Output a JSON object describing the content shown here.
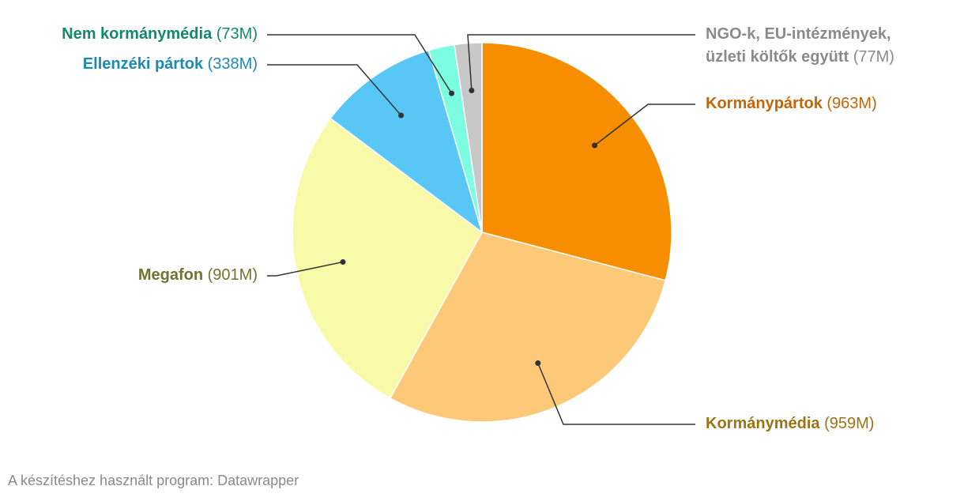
{
  "chart_data": {
    "type": "pie",
    "categories": [
      "Kormánypártok",
      "Kormánymédia",
      "Megafon",
      "Ellenzéki pártok",
      "Nem kormánymédia",
      "NGO-k, EU-intézmények, üzleti költők együtt"
    ],
    "values": [
      963,
      959,
      901,
      338,
      73,
      77
    ],
    "value_labels": [
      "(963M)",
      "(959M)",
      "(901M)",
      "(338M)",
      "(73M)",
      "(77M)"
    ],
    "colors": [
      "#f78e00",
      "#fdc978",
      "#f9f9aa",
      "#58c7f6",
      "#7cfce0",
      "#c8c8c8"
    ],
    "label_colors": [
      "#c4650a",
      "#9c7312",
      "#737230",
      "#1b8bb6",
      "#12896f",
      "#8a8a8a"
    ]
  },
  "footer": "A készítéshez használt program: Datawrapper"
}
